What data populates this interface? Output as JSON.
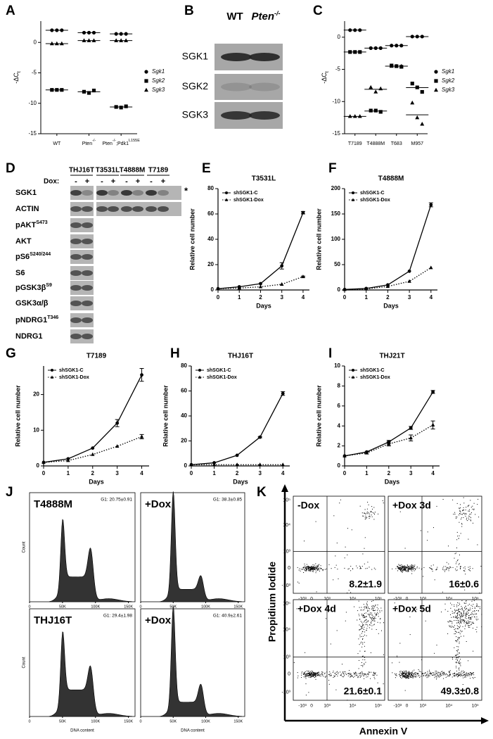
{
  "panel_letters": [
    "A",
    "B",
    "C",
    "D",
    "E",
    "F",
    "G",
    "H",
    "I",
    "J",
    "K"
  ],
  "chart_data": [
    {
      "type": "scatter",
      "ylabel": "-ΔC",
      "ylabel_sub": "t",
      "categories": [
        [
          "WT"
        ],
        [
          "Pten",
          "-/-"
        ],
        [
          "Pten",
          "-/-",
          ";Pdk1",
          "L155E"
        ]
      ],
      "ylim": [
        -15,
        3.5
      ],
      "yticks": [
        -15,
        -10,
        -5,
        0
      ],
      "color": "#000000",
      "series": [
        {
          "name": "Sgk1",
          "marker": "circle",
          "values": [
            [
              2,
              2,
              2
            ],
            [
              1.6,
              1.6,
              1.6
            ],
            [
              1.4,
              1.4,
              1.4
            ]
          ]
        },
        {
          "name": "Sgk2",
          "marker": "square",
          "values": [
            [
              -7.8,
              -7.8,
              -7.8
            ],
            [
              -8.1,
              -8.3,
              -7.9
            ],
            [
              -10.6,
              -10.7,
              -10.5
            ]
          ]
        },
        {
          "name": "Sgk3",
          "marker": "triangle",
          "values": [
            [
              -0.2,
              -0.2,
              -0.2
            ],
            [
              0.3,
              0.3,
              0.3
            ],
            [
              0.3,
              0.3,
              0.3
            ]
          ]
        }
      ]
    },
    {
      "type": "scatter",
      "ylabel": "-ΔC",
      "ylabel_sub": "t",
      "categories": [
        [
          "T7189"
        ],
        [
          "T4888M"
        ],
        [
          "T683"
        ],
        [
          "M957"
        ]
      ],
      "ylim": [
        -15,
        2.5
      ],
      "yticks": [
        -15,
        -10,
        -5,
        0
      ],
      "color": "#000000",
      "series": [
        {
          "name": "Sgk1",
          "marker": "circle",
          "values": [
            [
              1.1,
              1.1,
              1.1
            ],
            [
              -1.7,
              -1.7,
              -1.7
            ],
            [
              -1.3,
              -1.3,
              -1.3
            ],
            [
              0.1,
              0.1,
              0.1
            ]
          ]
        },
        {
          "name": "Sgk2",
          "marker": "square",
          "values": [
            [
              -2.3,
              -2.3,
              -2.3
            ],
            [
              -11.4,
              -11.4,
              -11.6
            ],
            [
              -4.4,
              -4.5,
              -4.6
            ],
            [
              -7.2,
              -7.8,
              -8.5
            ]
          ]
        },
        {
          "name": "Sgk3",
          "marker": "triangle",
          "values": [
            [
              -12.3,
              -12.3,
              -12.3
            ],
            [
              -7.8,
              -8.5,
              -8.0
            ],
            [
              -4.5,
              -4.5,
              -4.5
            ],
            [
              -10.2,
              -12.5,
              -13.5
            ]
          ]
        }
      ]
    },
    {
      "type": "line",
      "title": "T3531L",
      "xlabel": "Days",
      "ylabel": "Relative cell number",
      "color": "#000000",
      "x": [
        0,
        1,
        2,
        3,
        4
      ],
      "xlim": [
        0,
        4.3
      ],
      "xticks": [
        0,
        1,
        2,
        3,
        4
      ],
      "ylim": [
        0,
        80
      ],
      "yticks": [
        0,
        20,
        40,
        60,
        80
      ],
      "series": [
        {
          "name": "shSGK1-C",
          "marker": "circle",
          "dashed": false,
          "values": [
            1,
            2.5,
            5,
            19,
            61
          ],
          "errors": [
            0,
            0,
            0,
            2.5,
            1
          ]
        },
        {
          "name": "shSGK1-Dox",
          "marker": "triangle",
          "dashed": true,
          "values": [
            1,
            1.5,
            2.5,
            4.5,
            10.5
          ],
          "errors": [
            0,
            0,
            0,
            0,
            0.5
          ]
        }
      ]
    },
    {
      "type": "line",
      "title": "T4888M",
      "xlabel": "Days",
      "ylabel": "Relative cell number",
      "color": "#000000",
      "x": [
        0,
        1,
        2,
        3,
        4
      ],
      "xlim": [
        0,
        4.3
      ],
      "xticks": [
        0,
        1,
        2,
        3,
        4
      ],
      "ylim": [
        0,
        200
      ],
      "yticks": [
        0,
        50,
        100,
        150,
        200
      ],
      "series": [
        {
          "name": "shSGK1-C",
          "marker": "circle",
          "dashed": false,
          "values": [
            1,
            3,
            10,
            37,
            168
          ],
          "errors": [
            0,
            0,
            0,
            0,
            4
          ]
        },
        {
          "name": "shSGK1-Dox",
          "marker": "triangle",
          "dashed": true,
          "values": [
            1,
            2,
            7,
            17,
            44
          ],
          "errors": [
            0,
            0,
            0,
            0,
            0
          ]
        }
      ]
    },
    {
      "type": "line",
      "title": "T7189",
      "xlabel": "Days",
      "ylabel": "Relative cell number",
      "color": "#000000",
      "x": [
        0,
        1,
        2,
        3,
        4
      ],
      "xlim": [
        0,
        4.3
      ],
      "xticks": [
        0,
        1,
        2,
        3,
        4
      ],
      "ylim": [
        0,
        28
      ],
      "yticks": [
        0,
        10,
        20
      ],
      "series": [
        {
          "name": "shSGK1-C",
          "marker": "circle",
          "dashed": false,
          "values": [
            1,
            2,
            5,
            12,
            25.5
          ],
          "errors": [
            0,
            0,
            0,
            1,
            1.8
          ]
        },
        {
          "name": "shSGK1-Dox",
          "marker": "triangle",
          "dashed": true,
          "values": [
            1,
            1.5,
            3.2,
            5.5,
            8.2
          ],
          "errors": [
            0,
            0,
            0,
            0,
            0.6
          ]
        }
      ]
    },
    {
      "type": "line",
      "title": "THJ16T",
      "xlabel": "Days",
      "ylabel": "Relative cell number",
      "color": "#000000",
      "x": [
        0,
        1,
        2,
        3,
        4
      ],
      "xlim": [
        0,
        4.3
      ],
      "xticks": [
        0,
        1,
        2,
        3,
        4
      ],
      "ylim": [
        0,
        80
      ],
      "yticks": [
        0,
        20,
        40,
        60,
        80
      ],
      "series": [
        {
          "name": "shSGK1-C",
          "marker": "circle",
          "dashed": false,
          "values": [
            1,
            2.5,
            8.5,
            23,
            58
          ],
          "errors": [
            0,
            0,
            0,
            0.5,
            1.5
          ]
        },
        {
          "name": "shSGK1-Dox",
          "marker": "triangle",
          "dashed": true,
          "values": [
            1,
            1,
            1,
            1,
            1
          ],
          "errors": [
            0,
            0,
            0,
            0,
            0
          ]
        }
      ]
    },
    {
      "type": "line",
      "title": "THJ21T",
      "xlabel": "Days",
      "ylabel": "Relative cell number",
      "color": "#000000",
      "x": [
        0,
        1,
        2,
        3,
        4
      ],
      "xlim": [
        0,
        4.3
      ],
      "xticks": [
        0,
        1,
        2,
        3,
        4
      ],
      "ylim": [
        0,
        10
      ],
      "yticks": [
        0,
        2,
        4,
        6,
        8,
        10
      ],
      "series": [
        {
          "name": "shSGK1-C",
          "marker": "circle",
          "dashed": false,
          "values": [
            1,
            1.4,
            2.4,
            3.8,
            7.4
          ],
          "errors": [
            0,
            0,
            0.15,
            0.15,
            0.15
          ]
        },
        {
          "name": "shSGK1-Dox",
          "marker": "triangle",
          "dashed": true,
          "values": [
            1,
            1.3,
            2.2,
            2.8,
            4.1
          ],
          "errors": [
            0,
            0.1,
            0.2,
            0.3,
            0.4
          ]
        }
      ]
    }
  ],
  "blot_b": {
    "columns": [
      [
        "WT"
      ],
      [
        "Pten",
        "-/-"
      ]
    ],
    "rows": [
      "SGK1",
      "SGK2",
      "SGK3"
    ]
  },
  "blot_d": {
    "cell_lines": [
      "THJ16T",
      "T3531L",
      "T4888M",
      "T7189"
    ],
    "dox_label": "Dox:",
    "dox_signs": [
      "-",
      "+"
    ],
    "rows": [
      [
        "SGK1"
      ],
      [
        "ACTIN"
      ],
      [
        "pAKT",
        "S473"
      ],
      [
        "AKT"
      ],
      [
        "pS6",
        "S240/244"
      ],
      [
        "S6"
      ],
      [
        "pGSK3β",
        "S9"
      ],
      [
        "GSK3α/β"
      ],
      [
        "pNDRG1",
        "T346"
      ],
      [
        "NDRG1"
      ]
    ],
    "asterisk": "*"
  },
  "cell_cycle": {
    "panels": [
      {
        "label": "T4888M",
        "g1": "G1: 20.75±0.91"
      },
      {
        "label": "+Dox",
        "g1": "G1: 38.3±0.85"
      },
      {
        "label": "THJ16T",
        "g1": "G1: 29.4±1.98"
      },
      {
        "label": "+Dox",
        "g1": "G1: 40.9±2.61"
      }
    ],
    "xticks": [
      "0",
      "50K",
      "100K",
      "150K"
    ],
    "ylabel": "Count",
    "xlabel": "DNA content"
  },
  "apoptosis": {
    "panels": [
      {
        "label": "-Dox",
        "value": "8.2±1.9"
      },
      {
        "label": "+Dox 3d",
        "value": "16±0.6"
      },
      {
        "label": "+Dox 4d",
        "value": "21.6±0.1"
      },
      {
        "label": "+Dox 5d",
        "value": "49.3±0.8"
      }
    ],
    "yticks": [
      "10⁵",
      "10⁴",
      "10³",
      "0",
      "-10³"
    ],
    "xticks": [
      "-10³",
      "0",
      "10³",
      "10⁴",
      "10⁵"
    ],
    "ylabel": "Propidium Iodide",
    "xlabel": "Annexin V"
  }
}
